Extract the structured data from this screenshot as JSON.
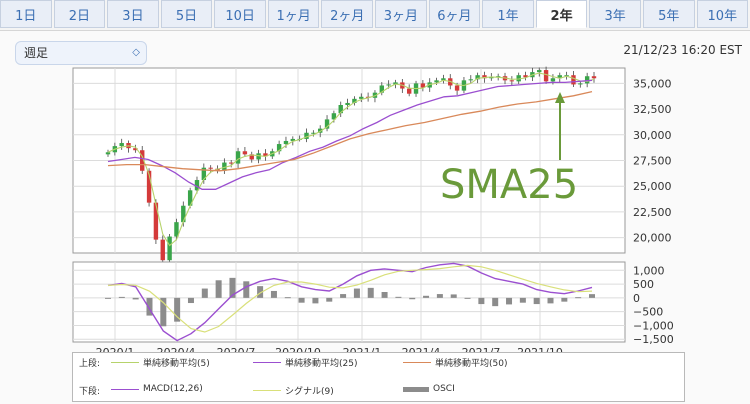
{
  "tabs": [
    {
      "label": "1日"
    },
    {
      "label": "2日"
    },
    {
      "label": "3日"
    },
    {
      "label": "5日"
    },
    {
      "label": "10日"
    },
    {
      "label": "1ヶ月"
    },
    {
      "label": "2ヶ月"
    },
    {
      "label": "3ヶ月"
    },
    {
      "label": "6ヶ月"
    },
    {
      "label": "1年"
    },
    {
      "label": "2年",
      "active": true
    },
    {
      "label": "3年"
    },
    {
      "label": "5年"
    },
    {
      "label": "10年"
    }
  ],
  "period_select": {
    "value": "週足"
  },
  "timestamp": "21/12/23 16:20 EST",
  "annotation": {
    "text": "SMA25",
    "color": "#6a9a3a"
  },
  "x_ticks": [
    "2020/1",
    "2020/4",
    "2020/7",
    "2020/10",
    "2021/1",
    "2021/4",
    "2021/7",
    "2021/10"
  ],
  "price_axis": [
    "35,000",
    "32,500",
    "30,000",
    "27,500",
    "25,000",
    "22,500",
    "20,000"
  ],
  "macd_axis": [
    "1,000",
    "500",
    "0",
    "−500",
    "−1,000",
    "−1,500"
  ],
  "legend": {
    "upper_label": "上段:",
    "lower_label": "下段:",
    "upper": [
      {
        "name": "単純移動平均(5)",
        "color": "#b6d36b"
      },
      {
        "name": "単純移動平均(25)",
        "color": "#9b4fd0"
      },
      {
        "name": "単純移動平均(50)",
        "color": "#d9895a"
      }
    ],
    "lower": [
      {
        "name": "MACD(12,26)",
        "color": "#9b4fd0"
      },
      {
        "name": "シグナル(9)",
        "color": "#d9e07a"
      },
      {
        "name": "OSCI",
        "color": "#8c8c8c"
      }
    ]
  },
  "colors": {
    "up": "#3aa54a",
    "down": "#d43a3a",
    "grid": "#dcdcdc"
  },
  "chart_data": {
    "type": "line",
    "title": "",
    "price_ylim": [
      18500,
      36500
    ],
    "price_series": {
      "weeks": 105,
      "close_approx": [
        28300,
        28900,
        29200,
        28700,
        28500,
        26500,
        23400,
        19800,
        17800,
        20100,
        21500,
        23100,
        24600,
        25600,
        26800,
        26700,
        26500,
        27300,
        27200,
        28400,
        28100,
        27600,
        28200,
        27900,
        28400,
        29100,
        29400,
        29600,
        29600,
        30200,
        30200,
        30600,
        31500,
        32100,
        32900,
        33100,
        33500,
        33700,
        33600,
        34100,
        34800,
        34900,
        35100,
        34500,
        34000,
        35000,
        34600,
        35100,
        35300,
        35500,
        34800,
        34300,
        35300,
        35400,
        35800,
        35500,
        35600,
        35700,
        35300,
        35200,
        35800,
        35600,
        36100,
        36300,
        35200,
        35500,
        35800,
        35800,
        34900,
        35000,
        35700,
        35500
      ],
      "sma25_approx": [
        27400,
        27600,
        27800,
        27600,
        27000,
        26300,
        25400,
        24700,
        24700,
        25300,
        25900,
        26300,
        26600,
        27300,
        27800,
        28400,
        28800,
        29400,
        29900,
        30600,
        31200,
        31900,
        32400,
        32900,
        33300,
        33700,
        33800,
        34100,
        34400,
        34700,
        34800,
        34900,
        35000,
        35100,
        35100,
        35200,
        35300
      ],
      "sma50_approx": [
        27000,
        27100,
        27100,
        26900,
        26700,
        26600,
        26500,
        26700,
        27000,
        27300,
        27600,
        28200,
        28900,
        29600,
        30100,
        30500,
        30900,
        31200,
        31600,
        32000,
        32300,
        32700,
        33000,
        33200,
        33500,
        33800,
        34200
      ]
    },
    "macd_ylim": [
      -1600,
      1300
    ],
    "macd_approx": [
      450,
      520,
      400,
      -400,
      -1200,
      -1550,
      -1300,
      -900,
      -400,
      100,
      400,
      600,
      700,
      600,
      400,
      300,
      250,
      500,
      800,
      1000,
      1050,
      1000,
      950,
      1100,
      1200,
      1250,
      1150,
      900,
      700,
      600,
      500,
      300,
      200,
      150,
      250,
      380
    ]
  }
}
